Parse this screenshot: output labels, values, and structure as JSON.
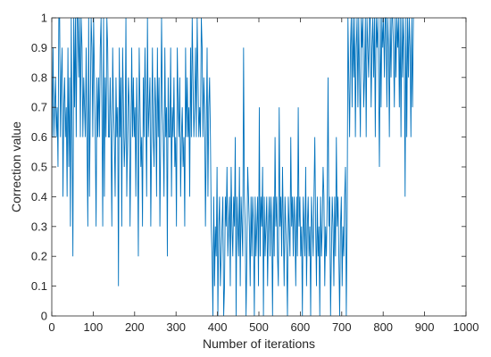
{
  "chart_data": {
    "type": "line",
    "xlabel": "Number of iterations",
    "ylabel": "Correction value",
    "xlim": [
      0,
      1000
    ],
    "ylim": [
      0,
      1
    ],
    "x_ticks": [
      "0",
      "100",
      "200",
      "300",
      "400",
      "500",
      "600",
      "700",
      "800",
      "900",
      "1000"
    ],
    "y_ticks": [
      "0",
      "0.1",
      "0.2",
      "0.3",
      "0.4",
      "0.5",
      "0.6",
      "0.7",
      "0.8",
      "0.9",
      "1"
    ],
    "grid": false,
    "box": true,
    "line_color": "#0072BD",
    "series": [
      {
        "x_start": 1,
        "x_step": 2,
        "values": [
          0.6,
          0.9,
          0.6,
          0.7,
          0.8,
          0.6,
          0.7,
          0.5,
          1,
          1,
          0.6,
          0.8,
          0.9,
          0.4,
          0.7,
          0.8,
          0.6,
          0.7,
          0.4,
          0.9,
          0.5,
          0.8,
          0.3,
          1,
          0.6,
          0.2,
          1,
          0.7,
          1,
          0.6,
          1,
          1,
          0.8,
          1,
          0.6,
          1,
          0.9,
          0.6,
          0.8,
          0.7,
          0.6,
          0.9,
          0.6,
          0.3,
          1,
          0.4,
          0.7,
          1,
          0.9,
          0.6,
          1,
          0.8,
          0.6,
          0.3,
          0.8,
          0.6,
          0.8,
          0.6,
          0.9,
          1,
          0.7,
          0.3,
          1,
          0.4,
          0.8,
          0.6,
          1,
          0.9,
          0.6,
          0.6,
          0.8,
          0.6,
          0.3,
          0.9,
          0.7,
          0.6,
          0.4,
          0.8,
          0.6,
          0.7,
          0.1,
          0.9,
          0.6,
          0.8,
          0.3,
          0.9,
          0.7,
          0.5,
          0.6,
          1,
          0.4,
          0.6,
          0.8,
          0.7,
          0.3,
          0.6,
          0.9,
          0.6,
          0.8,
          0.6,
          0.7,
          0.4,
          0.8,
          0.6,
          0.2,
          0.9,
          0.7,
          0.5,
          0.6,
          0.3,
          0.8,
          0.6,
          0.9,
          0.7,
          0.4,
          1,
          0.6,
          0.7,
          0.8,
          0.3,
          0.6,
          0.9,
          0.6,
          0.5,
          0.8,
          0.7,
          0.4,
          0.9,
          0.6,
          0.8,
          0.3,
          0.6,
          1,
          0.7,
          0.6,
          0.4,
          0.9,
          0.6,
          0.7,
          0.2,
          0.8,
          0.6,
          0.6,
          0.9,
          0.4,
          0.7,
          0.6,
          0.8,
          0.5,
          0.6,
          0.3,
          0.9,
          0.7,
          0.6,
          0.8,
          0.4,
          0.6,
          0.7,
          0.5,
          0.6,
          0.3,
          0.9,
          0.6,
          0.8,
          0.6,
          0.7,
          0.4,
          0.9,
          0.6,
          1,
          0.8,
          0.6,
          0.7,
          0.9,
          0.6,
          1,
          0.8,
          0.6,
          0.7,
          0.6,
          1,
          0.9,
          0.6,
          0.8,
          0.7,
          0.3,
          0.6,
          0.9,
          0.4,
          0.7,
          0.8,
          0.6,
          0.3,
          0.2,
          0,
          0.4,
          0.1,
          0.3,
          0.2,
          0.5,
          0,
          0.3,
          0.4,
          0.1,
          0.2,
          0.3,
          0.4,
          0,
          0.1,
          0.4,
          0.3,
          0.5,
          0.2,
          0.3,
          0.4,
          0.1,
          0.5,
          0.3,
          0.2,
          0.4,
          0.3,
          0.6,
          0,
          0.4,
          0.3,
          0.2,
          0.5,
          0.1,
          0.4,
          0.3,
          0.2,
          0.9,
          0.4,
          0.3,
          0,
          0.2,
          0.5,
          0.4,
          0.3,
          0.1,
          0.4,
          0.2,
          0.4,
          0.3,
          0,
          0.4,
          0.2,
          0.3,
          0.4,
          0.1,
          0.7,
          0.2,
          0.4,
          0.3,
          0.5,
          0,
          0.4,
          0.2,
          0.3,
          0.4,
          0.1,
          0.3,
          0.4,
          0.2,
          0.4,
          0.3,
          0,
          0.4,
          0.2,
          0.6,
          0.3,
          0.4,
          0.2,
          0.1,
          0.7,
          0.3,
          0.4,
          0.2,
          0.5,
          0.3,
          0.1,
          0.4,
          0.3,
          0.2,
          0,
          0.4,
          0.3,
          0.2,
          0.6,
          0.3,
          0.4,
          0.2,
          0.4,
          0.3,
          0.1,
          0.4,
          0.2,
          0.7,
          0.3,
          0.4,
          0.2,
          0.3,
          0,
          0.4,
          0.3,
          0.2,
          0.5,
          0.1,
          0.3,
          0.4,
          0.2,
          0.3,
          0,
          0.4,
          0.3,
          0.2,
          0.4,
          0.6,
          0.3,
          0.1,
          0.4,
          0.2,
          0.3,
          0,
          0.4,
          0.2,
          0.3,
          0.5,
          0.4,
          0.1,
          0.3,
          0.2,
          0.4,
          0.8,
          0.3,
          0.4,
          0,
          0.2,
          0.4,
          0.3,
          0.1,
          0.4,
          0.2,
          0.6,
          0.3,
          0.4,
          0.2,
          0,
          0.3,
          0.4,
          0.1,
          0.3,
          0.2,
          0.4,
          0.5,
          0,
          0.3,
          1,
          0.8,
          0.6,
          0.9,
          1,
          0.7,
          1,
          0.8,
          1,
          0.6,
          0.9,
          1,
          0.7,
          1,
          0.8,
          0.6,
          1,
          0.9,
          1,
          0.7,
          0.8,
          1,
          0.6,
          1,
          0.9,
          0.8,
          1,
          1,
          0.7,
          0.9,
          1,
          0.8,
          1,
          0.6,
          1,
          0.9,
          1,
          0.8,
          0.5,
          1,
          0.7,
          1,
          0.9,
          1,
          0.8,
          1,
          1,
          0.7,
          1,
          0.9,
          0.6,
          1,
          0.8,
          1,
          1,
          0.9,
          0.7,
          1,
          0.8,
          1,
          0.9,
          1,
          0.7,
          1,
          0.6,
          1,
          0.8,
          1,
          0.9,
          0.4,
          1,
          0.6,
          1,
          0.8,
          1,
          0.9,
          0.6,
          1,
          0.7,
          1
        ]
      }
    ]
  }
}
